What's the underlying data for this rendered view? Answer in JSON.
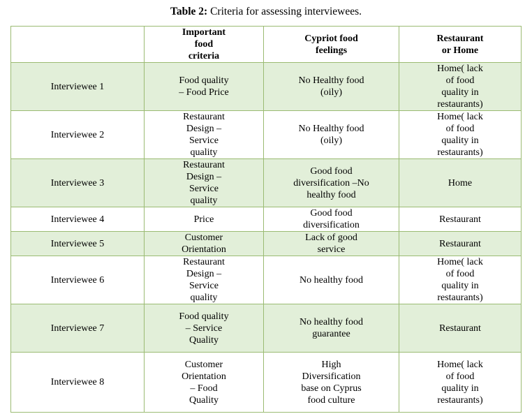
{
  "title": {
    "label": "Table 2:",
    "text": "Criteria for assessing interviewees."
  },
  "table": {
    "header": [
      "",
      "Important food criteria",
      "Cypriot food feelings",
      "Restaurant or Home"
    ],
    "rows": [
      [
        "Interviewee 1",
        "Food quality – Food Price",
        "No Healthy food (oily)",
        "Home( lack of food quality in restaurants)"
      ],
      [
        "Interviewee 2",
        "Restaurant Design – Service quality",
        "No Healthy food (oily)",
        "Home( lack of food quality in restaurants)"
      ],
      [
        "Interviewee 3",
        "Restaurant Design – Service quality",
        "Good food diversification –No healthy food",
        "Home"
      ],
      [
        "Interviewee 4",
        "Price",
        "Good food diversification",
        "Restaurant"
      ],
      [
        "Interviewee 5",
        "Customer Orientation",
        "Lack of good service",
        "Restaurant"
      ],
      [
        "Interviewee 6",
        "Restaurant Design – Service quality",
        "No healthy food",
        "Home( lack of food quality in restaurants)"
      ],
      [
        "Interviewee 7",
        "Food quality – Service Quality",
        "No healthy food guarantee",
        "Restaurant"
      ],
      [
        "Interviewee 8",
        "Customer Orientation – Food Quality",
        "High Diversification base on Cyprus food culture",
        "Home( lack of food quality in restaurants)"
      ]
    ]
  }
}
